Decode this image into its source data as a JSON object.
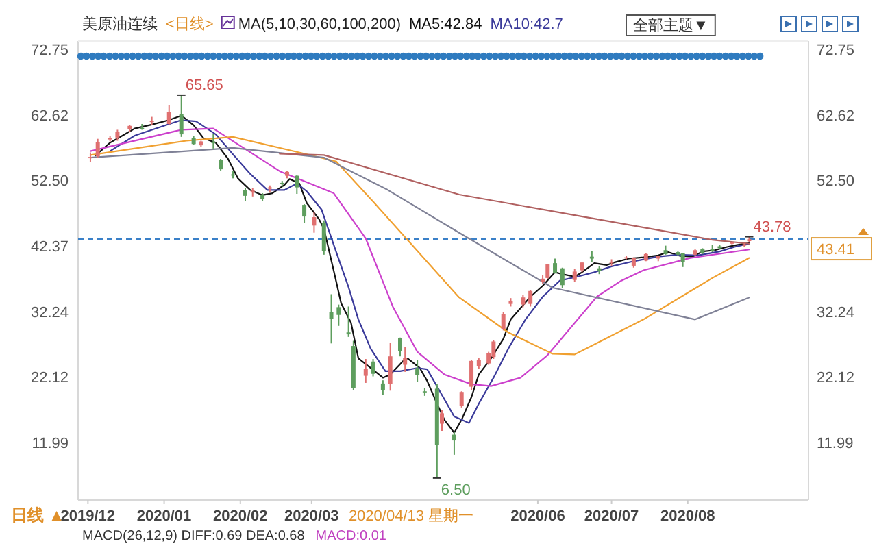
{
  "chart_data": {
    "type": "candlestick",
    "title": "美原油连续",
    "subtitle": "<日线>",
    "legend_title": "MA(5,10,30,60,100,200)",
    "legend": "top",
    "xlim": [
      "2019-11-27",
      "2020-09-18"
    ],
    "ylim": [
      3.1,
      74
    ],
    "y2lim": [
      3.1,
      74
    ],
    "xticks": [
      {
        "value": "2019-12-01",
        "label": "2019/12"
      },
      {
        "value": "2020-01-01",
        "label": "2020/01"
      },
      {
        "value": "2020-02-01",
        "label": "2020/02"
      },
      {
        "value": "2020-03-01",
        "label": "2020/03"
      },
      {
        "value": "2020-06-01",
        "label": "2020/06"
      },
      {
        "value": "2020-07-01",
        "label": "2020/07"
      },
      {
        "value": "2020-08-01",
        "label": "2020/08"
      }
    ],
    "yticks": [
      11.99,
      22.12,
      32.24,
      42.37,
      {
        "value": 52.5,
        "label": "52.50"
      },
      62.62,
      72.75
    ],
    "y2ticks": [
      11.99,
      22.12,
      32.24,
      {
        "value": 52.5,
        "label": "52.50"
      },
      62.62,
      72.75
    ],
    "ref_lines": [
      {
        "axis": "y",
        "value": 43.41,
        "label": "43.41",
        "color": "#3a80c8",
        "line_style": "dashed"
      }
    ],
    "series": [
      {
        "color": "#e07070",
        "x": [
          "2019-12-02",
          "2019-12-05",
          "2019-12-10",
          "2019-12-13",
          "2019-12-18",
          "2019-12-27",
          "2020-01-03",
          "2020-01-16",
          "2020-02-06",
          "2020-02-13",
          "2020-02-20",
          "2020-03-02",
          "2020-03-23",
          "2020-04-02",
          "2020-04-08",
          "2020-04-23",
          "2020-05-01",
          "2020-05-05",
          "2020-05-08",
          "2020-05-12",
          "2020-05-14",
          "2020-05-18",
          "2020-05-21",
          "2020-05-26",
          "2020-05-29",
          "2020-06-03",
          "2020-06-05",
          "2020-06-16",
          "2020-06-19",
          "2020-07-01",
          "2020-07-07",
          "2020-07-10",
          "2020-07-15",
          "2020-07-20",
          "2020-08-04",
          "2020-08-19",
          "2020-08-24",
          "2020-08-26"
        ],
        "ohlc": [
          [
            55.9,
            56.8,
            55.3,
            56.1
          ],
          [
            56.2,
            58.9,
            56.0,
            58.4
          ],
          [
            58.8,
            59.3,
            58.5,
            59.0
          ],
          [
            59.1,
            60.3,
            58.6,
            60.0
          ],
          [
            60.4,
            61.0,
            60.0,
            60.9
          ],
          [
            61.5,
            62.3,
            61.0,
            61.7
          ],
          [
            61.2,
            64.1,
            61.1,
            63.1
          ],
          [
            57.9,
            58.6,
            57.7,
            58.5
          ],
          [
            50.6,
            51.3,
            50.0,
            50.9
          ],
          [
            51.2,
            51.7,
            50.6,
            51.4
          ],
          [
            53.2,
            54.0,
            52.8,
            53.8
          ],
          [
            45.5,
            47.6,
            44.4,
            46.8
          ],
          [
            22.3,
            24.9,
            21.2,
            23.4
          ],
          [
            21.0,
            27.4,
            20.0,
            25.3
          ],
          [
            24.0,
            26.7,
            22.9,
            25.1
          ],
          [
            14.9,
            17.0,
            13.8,
            16.5
          ],
          [
            17.7,
            19.9,
            17.4,
            19.8
          ],
          [
            20.6,
            24.7,
            20.1,
            24.6
          ],
          [
            23.8,
            25.0,
            23.4,
            24.7
          ],
          [
            24.2,
            26.0,
            24.0,
            25.8
          ],
          [
            25.2,
            27.8,
            24.9,
            27.6
          ],
          [
            29.5,
            32.1,
            29.3,
            31.8
          ],
          [
            33.4,
            34.3,
            33.0,
            33.9
          ],
          [
            33.3,
            34.8,
            32.9,
            34.4
          ],
          [
            33.4,
            35.5,
            33.0,
            35.4
          ],
          [
            36.8,
            37.9,
            36.5,
            37.3
          ],
          [
            37.4,
            39.6,
            37.3,
            39.5
          ],
          [
            37.1,
            38.8,
            36.8,
            38.4
          ],
          [
            38.6,
            39.8,
            38.3,
            39.8
          ],
          [
            39.8,
            40.3,
            39.3,
            39.9
          ],
          [
            40.5,
            40.8,
            40.3,
            40.6
          ],
          [
            39.3,
            40.6,
            39.0,
            40.5
          ],
          [
            40.1,
            41.2,
            40.0,
            41.1
          ],
          [
            40.4,
            40.8,
            40.0,
            40.8
          ],
          [
            41.0,
            41.9,
            40.8,
            41.7
          ],
          [
            42.7,
            43.0,
            42.6,
            42.9
          ],
          [
            42.4,
            42.8,
            42.2,
            42.6
          ],
          [
            43.1,
            43.78,
            42.9,
            43.4
          ]
        ]
      },
      {
        "color": "#5e9e5e",
        "x": [
          "2019-12-23",
          "2020-01-08",
          "2020-01-13",
          "2020-01-21",
          "2020-01-24",
          "2020-01-29",
          "2020-02-03",
          "2020-02-10",
          "2020-02-18",
          "2020-02-24",
          "2020-02-27",
          "2020-03-06",
          "2020-03-09",
          "2020-03-12",
          "2020-03-16",
          "2020-03-18",
          "2020-03-26",
          "2020-03-30",
          "2020-04-06",
          "2020-04-13",
          "2020-04-16",
          "2020-04-21",
          "2020-04-28",
          "2020-06-08",
          "2020-06-11",
          "2020-06-23",
          "2020-06-26",
          "2020-07-23",
          "2020-07-28",
          "2020-07-30",
          "2020-08-07",
          "2020-08-11",
          "2020-08-14"
        ],
        "ohlc": [
          [
            60.6,
            61.2,
            60.3,
            60.5
          ],
          [
            62.7,
            65.65,
            59.2,
            59.6
          ],
          [
            59.0,
            59.3,
            58.0,
            58.1
          ],
          [
            58.4,
            59.7,
            57.4,
            58.3
          ],
          [
            55.6,
            55.8,
            53.9,
            54.2
          ],
          [
            53.4,
            54.0,
            52.8,
            53.3
          ],
          [
            51.0,
            51.3,
            49.3,
            50.1
          ],
          [
            50.3,
            50.5,
            49.3,
            49.6
          ],
          [
            52.1,
            52.4,
            51.5,
            52.0
          ],
          [
            53.2,
            53.3,
            50.4,
            51.4
          ],
          [
            48.7,
            48.8,
            45.9,
            46.9
          ],
          [
            45.9,
            46.3,
            41.0,
            41.6
          ],
          [
            32.2,
            34.9,
            27.3,
            31.1
          ],
          [
            32.9,
            33.3,
            30.0,
            31.7
          ],
          [
            29.0,
            33.0,
            28.3,
            28.7
          ],
          [
            26.9,
            27.7,
            20.1,
            20.4
          ],
          [
            24.5,
            24.9,
            22.2,
            22.6
          ],
          [
            21.1,
            21.6,
            19.3,
            20.1
          ],
          [
            28.1,
            28.2,
            25.3,
            26.1
          ],
          [
            23.5,
            24.7,
            21.4,
            22.4
          ],
          [
            19.9,
            20.4,
            19.2,
            19.8
          ],
          [
            20.3,
            21.0,
            6.5,
            11.6
          ],
          [
            13.2,
            13.7,
            10.1,
            12.3
          ],
          [
            39.7,
            40.4,
            38.1,
            38.2
          ],
          [
            38.9,
            39.0,
            35.8,
            36.3
          ],
          [
            40.7,
            41.6,
            39.9,
            40.4
          ],
          [
            38.9,
            39.2,
            38.0,
            38.5
          ],
          [
            41.7,
            42.4,
            41.0,
            41.1
          ],
          [
            41.4,
            41.5,
            40.8,
            41.0
          ],
          [
            41.3,
            41.3,
            39.1,
            39.9
          ],
          [
            41.9,
            42.0,
            41.1,
            41.2
          ],
          [
            41.9,
            42.5,
            41.4,
            41.6
          ],
          [
            42.3,
            42.5,
            41.9,
            42.0
          ]
        ]
      },
      {
        "type": "line",
        "name": "MA5:42.84",
        "color": "#111111",
        "x": [
          "2019-12-04",
          "2019-12-10",
          "2019-12-16",
          "2019-12-20",
          "2019-12-27",
          "2020-01-03",
          "2020-01-08",
          "2020-01-13",
          "2020-01-17",
          "2020-01-22",
          "2020-01-27",
          "2020-01-31",
          "2020-02-05",
          "2020-02-10",
          "2020-02-14",
          "2020-02-19",
          "2020-02-21",
          "2020-02-25",
          "2020-02-28",
          "2020-03-04",
          "2020-03-06",
          "2020-03-10",
          "2020-03-13",
          "2020-03-17",
          "2020-03-20",
          "2020-03-25",
          "2020-03-30",
          "2020-04-02",
          "2020-04-07",
          "2020-04-09",
          "2020-04-14",
          "2020-04-17",
          "2020-04-21",
          "2020-04-24",
          "2020-04-28",
          "2020-05-01",
          "2020-05-05",
          "2020-05-08",
          "2020-05-13",
          "2020-05-18",
          "2020-05-21",
          "2020-05-26",
          "2020-05-29",
          "2020-06-03",
          "2020-06-08",
          "2020-06-11",
          "2020-06-16",
          "2020-06-19",
          "2020-06-24",
          "2020-06-29",
          "2020-07-02",
          "2020-07-08",
          "2020-07-14",
          "2020-07-20",
          "2020-07-24",
          "2020-07-29",
          "2020-08-03",
          "2020-08-07",
          "2020-08-12",
          "2020-08-17",
          "2020-08-21",
          "2020-08-26"
        ],
        "values": [
          56.3,
          58.3,
          59.6,
          60.5,
          61.1,
          61.8,
          62.5,
          61.0,
          59.0,
          58.3,
          55.8,
          52.8,
          51.0,
          50.2,
          50.5,
          51.8,
          52.7,
          52.0,
          49.0,
          46.5,
          45.0,
          38.5,
          33.5,
          30.5,
          25.0,
          23.5,
          22.0,
          22.5,
          24.5,
          25.0,
          23.5,
          21.5,
          18.0,
          15.5,
          13.5,
          15.5,
          19.0,
          22.5,
          25.0,
          28.0,
          31.0,
          33.2,
          34.5,
          36.2,
          38.3,
          38.0,
          37.6,
          38.3,
          39.7,
          39.4,
          39.8,
          40.4,
          40.6,
          40.9,
          41.4,
          40.8,
          40.7,
          41.5,
          41.7,
          42.2,
          42.5,
          42.8
        ]
      },
      {
        "type": "line",
        "name": "MA10:42.7",
        "color": "#3a3a9a",
        "x": [
          "2019-12-10",
          "2019-12-20",
          "2019-12-31",
          "2020-01-08",
          "2020-01-14",
          "2020-01-22",
          "2020-01-29",
          "2020-02-05",
          "2020-02-12",
          "2020-02-19",
          "2020-02-24",
          "2020-02-28",
          "2020-03-05",
          "2020-03-10",
          "2020-03-16",
          "2020-03-20",
          "2020-03-25",
          "2020-03-31",
          "2020-04-06",
          "2020-04-13",
          "2020-04-17",
          "2020-04-22",
          "2020-04-28",
          "2020-05-04",
          "2020-05-08",
          "2020-05-14",
          "2020-05-20",
          "2020-05-27",
          "2020-06-03",
          "2020-06-10",
          "2020-06-17",
          "2020-06-24",
          "2020-07-01",
          "2020-07-10",
          "2020-07-20",
          "2020-07-28",
          "2020-08-05",
          "2020-08-14",
          "2020-08-20",
          "2020-08-26"
        ],
        "values": [
          57.0,
          59.4,
          60.8,
          61.8,
          61.6,
          59.6,
          56.5,
          53.5,
          51.0,
          51.0,
          52.0,
          50.8,
          48.0,
          42.5,
          36.0,
          31.0,
          26.5,
          23.0,
          23.0,
          23.5,
          23.3,
          20.0,
          16.0,
          15.0,
          18.0,
          22.0,
          26.5,
          31.0,
          34.5,
          37.0,
          37.6,
          38.3,
          39.2,
          40.0,
          40.7,
          41.0,
          40.9,
          41.5,
          42.2,
          42.7
        ]
      },
      {
        "type": "line",
        "color": "#cc40cc",
        "x": [
          "2019-12-02",
          "2020-01-08",
          "2020-01-21",
          "2020-02-17",
          "2020-03-10",
          "2020-03-23",
          "2020-04-03",
          "2020-04-13",
          "2020-04-24",
          "2020-05-05",
          "2020-05-13",
          "2020-05-25",
          "2020-06-05",
          "2020-06-15",
          "2020-06-25",
          "2020-07-05",
          "2020-07-14",
          "2020-08-02",
          "2020-08-26"
        ],
        "values": [
          57.0,
          60.3,
          60.5,
          53.9,
          50.5,
          43.5,
          33.0,
          26.0,
          22.5,
          21.0,
          20.7,
          22.0,
          25.5,
          30.0,
          34.5,
          37.0,
          38.6,
          40.5,
          41.8
        ]
      },
      {
        "type": "line",
        "color": "#f0a030",
        "x": [
          "2019-12-02",
          "2020-01-10",
          "2020-01-29",
          "2020-02-26",
          "2020-03-11",
          "2020-03-26",
          "2020-04-30",
          "2020-05-20",
          "2020-06-07",
          "2020-06-16",
          "2020-07-14",
          "2020-08-11",
          "2020-08-26"
        ],
        "values": [
          56.4,
          58.6,
          59.2,
          56.7,
          55.4,
          49.2,
          34.4,
          29.0,
          25.7,
          25.6,
          31.0,
          37.4,
          40.5
        ]
      },
      {
        "type": "line",
        "color": "#7f8196",
        "x": [
          "2019-12-02",
          "2020-01-29",
          "2020-03-06",
          "2020-04-01",
          "2020-04-30",
          "2020-06-07",
          "2020-08-04",
          "2020-08-26"
        ],
        "values": [
          56.0,
          57.5,
          56.0,
          51.0,
          44.4,
          35.9,
          31.0,
          34.4
        ]
      },
      {
        "type": "line",
        "color": "#b06060",
        "x": [
          "2020-02-17",
          "2020-03-06",
          "2020-04-30",
          "2020-06-25",
          "2020-08-11",
          "2020-08-26"
        ],
        "values": [
          56.6,
          56.4,
          50.3,
          46.5,
          43.3,
          42.7
        ]
      }
    ],
    "annotations": [
      {
        "text": "65.65",
        "x": "2020-01-08",
        "y": 65.65
      },
      {
        "text": "6.50",
        "x": "2020-04-21",
        "y": 6.5
      },
      {
        "text": "43.78",
        "x": "2020-08-26",
        "y": 43.78
      },
      "2020/04/13 星期一",
      "日线 ▲",
      "全部主题▼",
      "MACD(26,12,9) DIFF:0.69  DEA:0.68",
      "MACD:0.01"
    ]
  }
}
